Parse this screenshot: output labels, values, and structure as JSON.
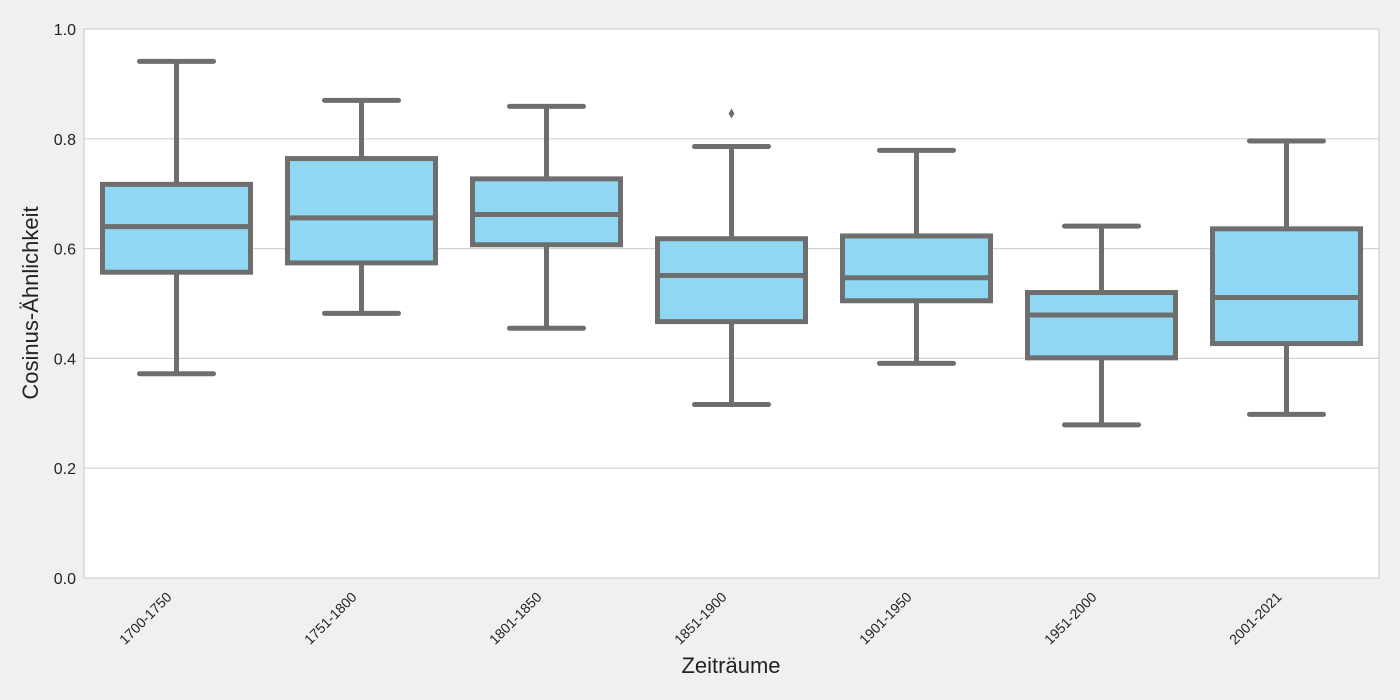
{
  "chart_data": {
    "type": "box",
    "title": "",
    "xlabel": "Zeiträume",
    "ylabel": "Cosinus-Ähnlichkeit",
    "ylim": [
      0,
      1.0
    ],
    "yticks": [
      0.0,
      0.2,
      0.4,
      0.6,
      0.8,
      1.0
    ],
    "ytick_labels": [
      "0.0",
      "0.2",
      "0.4",
      "0.6",
      "0.8",
      "1.0"
    ],
    "grid": "horizontal",
    "colors": {
      "box_fill": "#8fd7f2",
      "box_line": "#6e6e6e",
      "plot_bg": "#ffffff",
      "figure_bg": "#f0f0f0",
      "grid": "#d3d3d3"
    },
    "categories": [
      "1700-1750",
      "1751-1800",
      "1801-1850",
      "1851-1900",
      "1901-1950",
      "1951-2000",
      "2001-2021"
    ],
    "boxes": [
      {
        "whisker_low": 0.372,
        "q1": 0.557,
        "median": 0.64,
        "q3": 0.717,
        "whisker_high": 0.941,
        "outliers": []
      },
      {
        "whisker_low": 0.482,
        "q1": 0.574,
        "median": 0.656,
        "q3": 0.764,
        "whisker_high": 0.87,
        "outliers": []
      },
      {
        "whisker_low": 0.455,
        "q1": 0.607,
        "median": 0.662,
        "q3": 0.727,
        "whisker_high": 0.859,
        "outliers": []
      },
      {
        "whisker_low": 0.316,
        "q1": 0.467,
        "median": 0.551,
        "q3": 0.618,
        "whisker_high": 0.786,
        "outliers": [
          0.846
        ]
      },
      {
        "whisker_low": 0.391,
        "q1": 0.505,
        "median": 0.547,
        "q3": 0.623,
        "whisker_high": 0.779,
        "outliers": []
      },
      {
        "whisker_low": 0.279,
        "q1": 0.401,
        "median": 0.479,
        "q3": 0.52,
        "whisker_high": 0.641,
        "outliers": []
      },
      {
        "whisker_low": 0.298,
        "q1": 0.427,
        "median": 0.511,
        "q3": 0.636,
        "whisker_high": 0.796,
        "outliers": []
      }
    ]
  }
}
